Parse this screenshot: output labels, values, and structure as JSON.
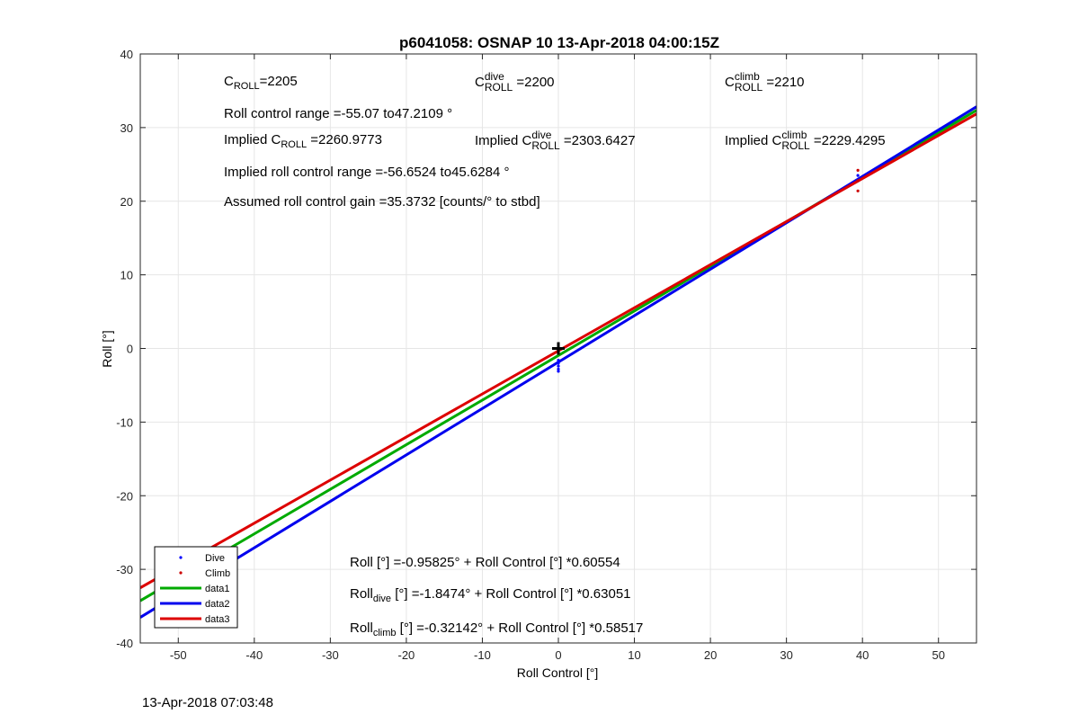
{
  "figure": {
    "timestamp": "13-Apr-2018 07:03:48"
  },
  "annotations": {
    "c_roll": {
      "letter": "C",
      "sub": "ROLL",
      "value": "=2205"
    },
    "c_roll_dive": {
      "letter": "C",
      "sup": "dive",
      "sub": "ROLL",
      "value": " =2200"
    },
    "c_roll_climb": {
      "letter": "C",
      "sup": "climb",
      "sub": "ROLL",
      "value": " =2210"
    },
    "roll_control_range": "Roll control range =-55.07 to47.2109 °",
    "implied_c_roll": {
      "prefix": "Implied C",
      "sub": "ROLL",
      "value": " =2260.9773"
    },
    "implied_c_roll_dive": {
      "prefix": "Implied C",
      "sup": "dive",
      "sub": "ROLL",
      "value": " =2303.6427"
    },
    "implied_c_roll_climb": {
      "prefix": "Implied C",
      "sup": "climb",
      "sub": "ROLL",
      "value": " =2229.4295"
    },
    "implied_range": "Implied roll control range =-56.6524 to45.6284 °",
    "assumed_gain": "Assumed roll control gain =35.3732 [counts/° to stbd]",
    "eq_all": "Roll [°] =-0.95825° + Roll Control [°] *0.60554",
    "eq_dive": {
      "prefix": "Roll",
      "sub": "dive",
      "rest": " [°] =-1.8474° + Roll Control [°] *0.63051"
    },
    "eq_climb": {
      "prefix": "Roll",
      "sub": "climb",
      "rest": " [°] =-0.32142° + Roll Control [°] *0.58517"
    }
  },
  "chart_data": {
    "type": "scatter",
    "title": "p6041058: OSNAP 10 13-Apr-2018 04:00:15Z",
    "xlabel": "Roll Control [°]",
    "ylabel": "Roll [°]",
    "xlim": [
      -55,
      55
    ],
    "ylim": [
      -40,
      40
    ],
    "xticks": [
      -50,
      -40,
      -30,
      -20,
      -10,
      0,
      10,
      20,
      30,
      40,
      50
    ],
    "yticks": [
      -40,
      -30,
      -20,
      -10,
      0,
      10,
      20,
      30,
      40
    ],
    "grid": true,
    "legend_position": "bottom-left",
    "series": [
      {
        "name": "Dive",
        "kind": "points",
        "color": "#0000ff",
        "x": [
          0,
          0,
          0,
          0,
          0,
          39.4
        ],
        "y": [
          -1.6,
          -2.0,
          -2.4,
          -2.8,
          -3.1,
          23.5
        ]
      },
      {
        "name": "Climb",
        "kind": "points",
        "color": "#cc0000",
        "x": [
          0,
          0,
          39.4,
          39.4,
          39.4
        ],
        "y": [
          -0.2,
          -0.5,
          24.2,
          22.8,
          21.4
        ]
      },
      {
        "name": "data1",
        "kind": "line",
        "color": "#00aa00",
        "intercept": -0.95825,
        "slope": 0.60554
      },
      {
        "name": "data2",
        "kind": "line",
        "color": "#0000ee",
        "intercept": -1.8474,
        "slope": 0.63051
      },
      {
        "name": "data3",
        "kind": "line",
        "color": "#dd0000",
        "intercept": -0.32142,
        "slope": 0.58517
      }
    ],
    "marker": {
      "x": 0,
      "y": 0,
      "symbol": "+"
    }
  },
  "colors": {
    "axis": "#262626",
    "grid": "#e6e6e6"
  }
}
